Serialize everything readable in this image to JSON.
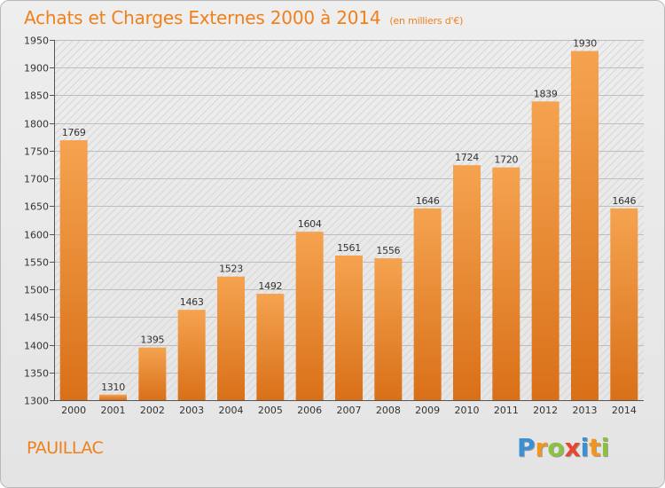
{
  "header": {
    "title": "Achats et Charges Externes 2000 à 2014",
    "subtitle": "(en milliers d'€)"
  },
  "footer": {
    "commune": "PAUILLAC",
    "brand_letters": [
      {
        "ch": "P",
        "color": "#3a8fd6"
      },
      {
        "ch": "r",
        "color": "#f2951f"
      },
      {
        "ch": "o",
        "color": "#8cc23f"
      },
      {
        "ch": "x",
        "color": "#e8462e"
      },
      {
        "ch": "i",
        "color": "#3a8fd6"
      },
      {
        "ch": "t",
        "color": "#f2951f"
      },
      {
        "ch": "i",
        "color": "#8cc23f"
      }
    ]
  },
  "chart_data": {
    "type": "bar",
    "categories": [
      "2000",
      "2001",
      "2002",
      "2003",
      "2004",
      "2005",
      "2006",
      "2007",
      "2008",
      "2009",
      "2010",
      "2011",
      "2012",
      "2013",
      "2014"
    ],
    "values": [
      1769,
      1310,
      1395,
      1463,
      1523,
      1492,
      1604,
      1561,
      1556,
      1646,
      1724,
      1720,
      1839,
      1930,
      1646
    ],
    "ylim": [
      1300,
      1950
    ],
    "yticks": [
      1300,
      1350,
      1400,
      1450,
      1500,
      1550,
      1600,
      1650,
      1700,
      1750,
      1800,
      1850,
      1900,
      1950
    ],
    "grid": "horizontal",
    "bar_color_top": "#f5a350",
    "bar_color_bottom": "#d97018"
  }
}
